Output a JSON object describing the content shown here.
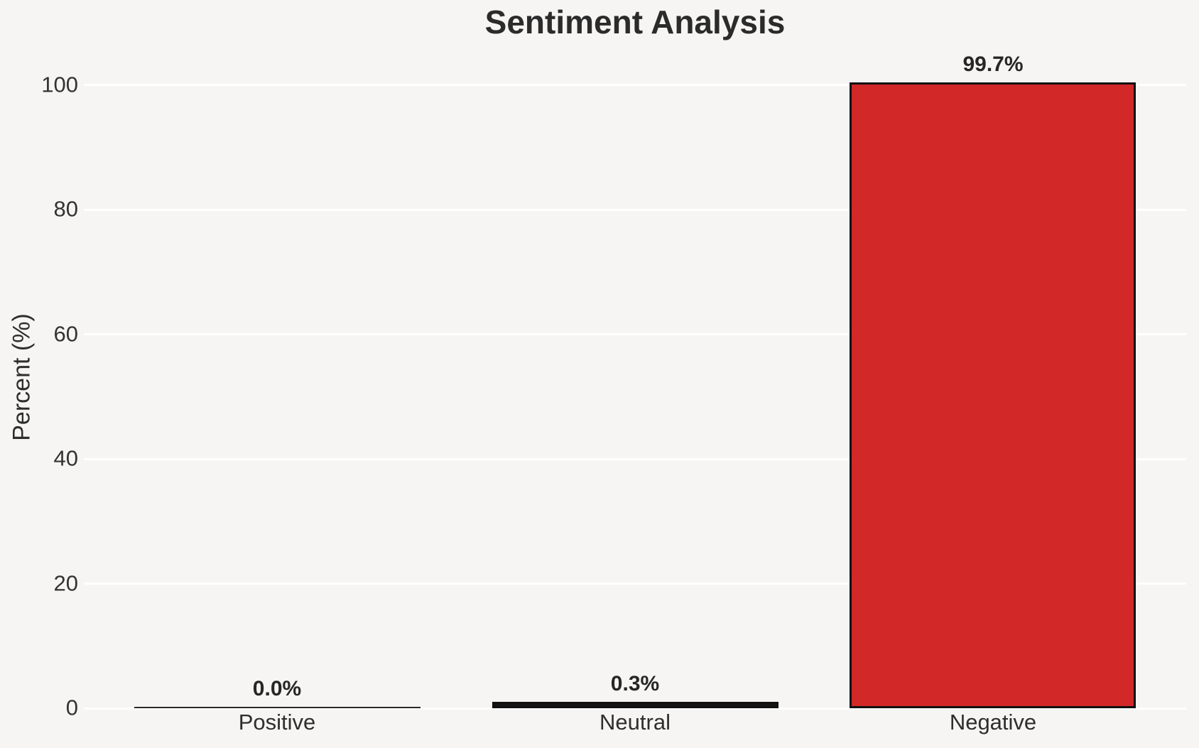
{
  "chart_data": {
    "type": "bar",
    "title": "Sentiment Analysis",
    "categories": [
      "Positive",
      "Neutral",
      "Negative"
    ],
    "values": [
      0.0,
      0.3,
      99.7
    ],
    "value_labels": [
      "0.0%",
      "0.3%",
      "99.7%"
    ],
    "xlabel": "",
    "ylabel": "Percent (%)",
    "ylim": [
      0,
      104.7
    ],
    "yticks": [
      0,
      20,
      40,
      60,
      80,
      100
    ],
    "grid": true,
    "legend_position": "none",
    "bar_fill_colors": [
      "#2a2a2a",
      "#151515",
      "#d22828"
    ],
    "bar_edge_color": "#111111",
    "background_color": "#f6f5f4",
    "gridline_color": "#ffffff",
    "text_color": "#2d2d2d"
  }
}
